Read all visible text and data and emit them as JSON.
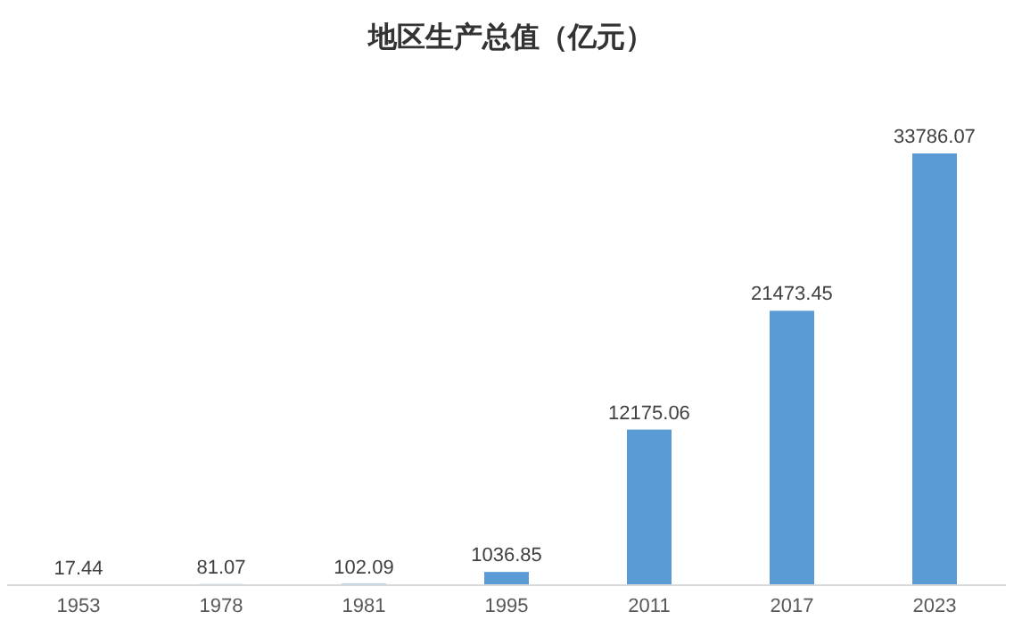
{
  "chart_data": {
    "type": "bar",
    "title": "地区生产总值（亿元）",
    "categories": [
      "1953",
      "1978",
      "1981",
      "1995",
      "2011",
      "2017",
      "2023"
    ],
    "values": [
      17.44,
      81.07,
      102.09,
      1036.85,
      12175.06,
      21473.45,
      33786.07
    ],
    "color": "#5b9bd5",
    "data_labels": true
  }
}
